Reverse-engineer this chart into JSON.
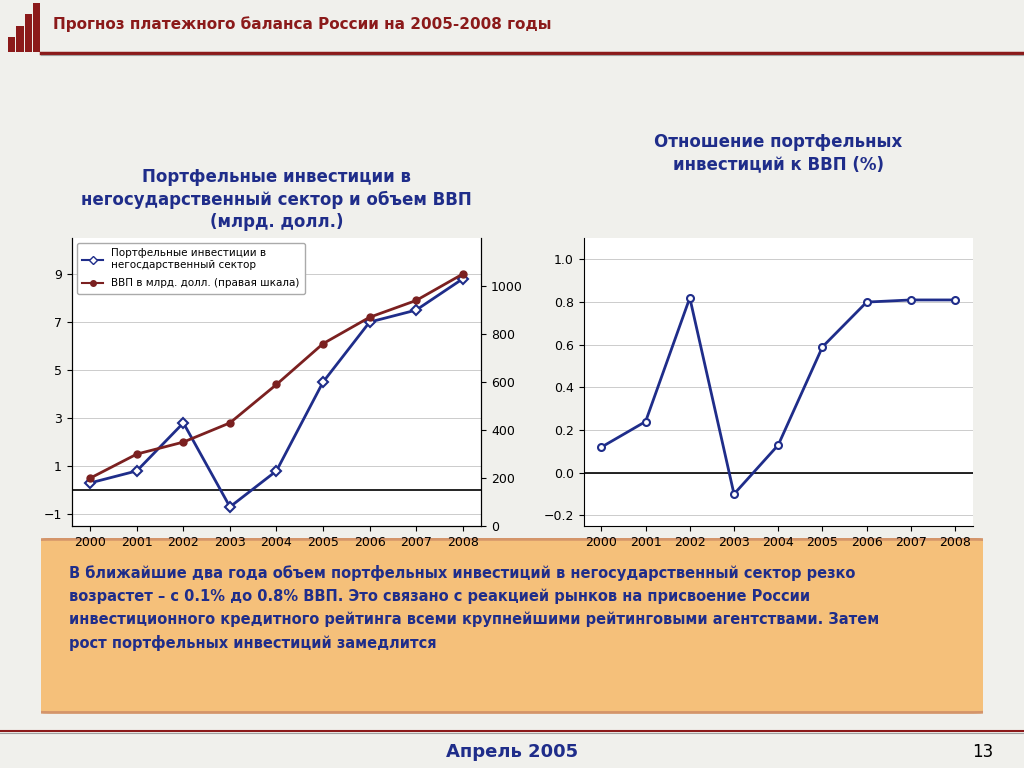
{
  "years": [
    2000,
    2001,
    2002,
    2003,
    2004,
    2005,
    2006,
    2007,
    2008
  ],
  "portfolio_investments": [
    0.3,
    0.8,
    2.8,
    -0.7,
    0.8,
    4.5,
    7.0,
    7.5,
    8.8
  ],
  "gdp": [
    200,
    300,
    350,
    430,
    590,
    760,
    870,
    940,
    1050
  ],
  "ratio": [
    0.12,
    0.24,
    0.82,
    -0.1,
    0.13,
    0.59,
    0.8,
    0.81,
    0.81
  ],
  "left_title": "Портфельные инвестиции в\nнегосударственный сектор и объем ВВП\n(млрд. долл.)",
  "right_title": "Отношение портфельных\nинвестиций к ВВП (%)",
  "header_title": "Прогноз платежного баланса России на 2005-2008 годы",
  "legend_line1": "Портфельные инвестиции в\nнегосдарственный сектор",
  "legend_line2": "ВВП в млрд. долл. (правая шкала)",
  "left_yticks": [
    -1,
    1,
    3,
    5,
    7,
    9
  ],
  "right_yticks2": [
    0,
    200,
    400,
    600,
    800,
    1000
  ],
  "ratio_yticks": [
    -0.2,
    0.0,
    0.2,
    0.4,
    0.6,
    0.8,
    1.0
  ],
  "line_color_blue": "#1F2D8A",
  "line_color_red": "#7B2020",
  "footer_text": "Апрель 2005",
  "page_number": "13",
  "annotation_text": "В ближайшие два года объем портфельных инвестиций в негосударственный сектор резко\nвозрастет – с 0.1% до 0.8% ВВП. Это связано с реакцией рынков на присвоение России\nинвестиционного кредитного рейтинга всеми крупнейшими рейтинговыми агентствами. Затем\nрост портфельных инвестиций замедлится",
  "header_color": "#8B1A1A",
  "title_color": "#1F2D8A",
  "bg_color": "#F0F0EC",
  "annotation_bg": "#F5C07A",
  "annotation_text_color": "#1F2D8A",
  "white": "#FFFFFF"
}
